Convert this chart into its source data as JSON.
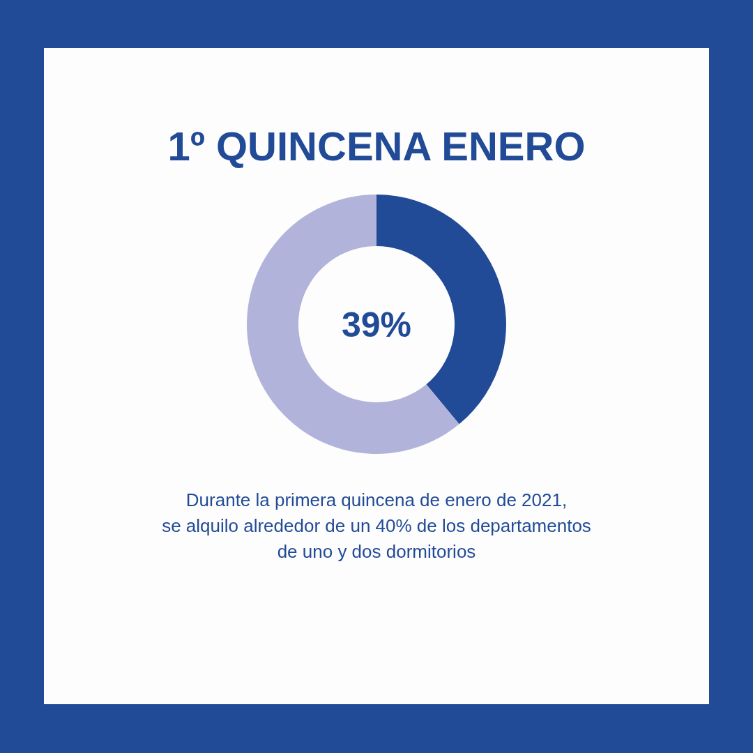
{
  "chart_data": {
    "type": "donut",
    "title": "1º QUINCENA ENERO",
    "subtitle": "Durante la primera quincena de enero de 2021,\nse alquilo alrededor de un 40% de los departamentos\nde uno y dos dormitorios",
    "categories": [
      null,
      null
    ],
    "values": [
      39,
      61
    ],
    "colors": [
      "#214a97",
      "#b1b3da"
    ],
    "annotations": [
      "39%"
    ]
  }
}
